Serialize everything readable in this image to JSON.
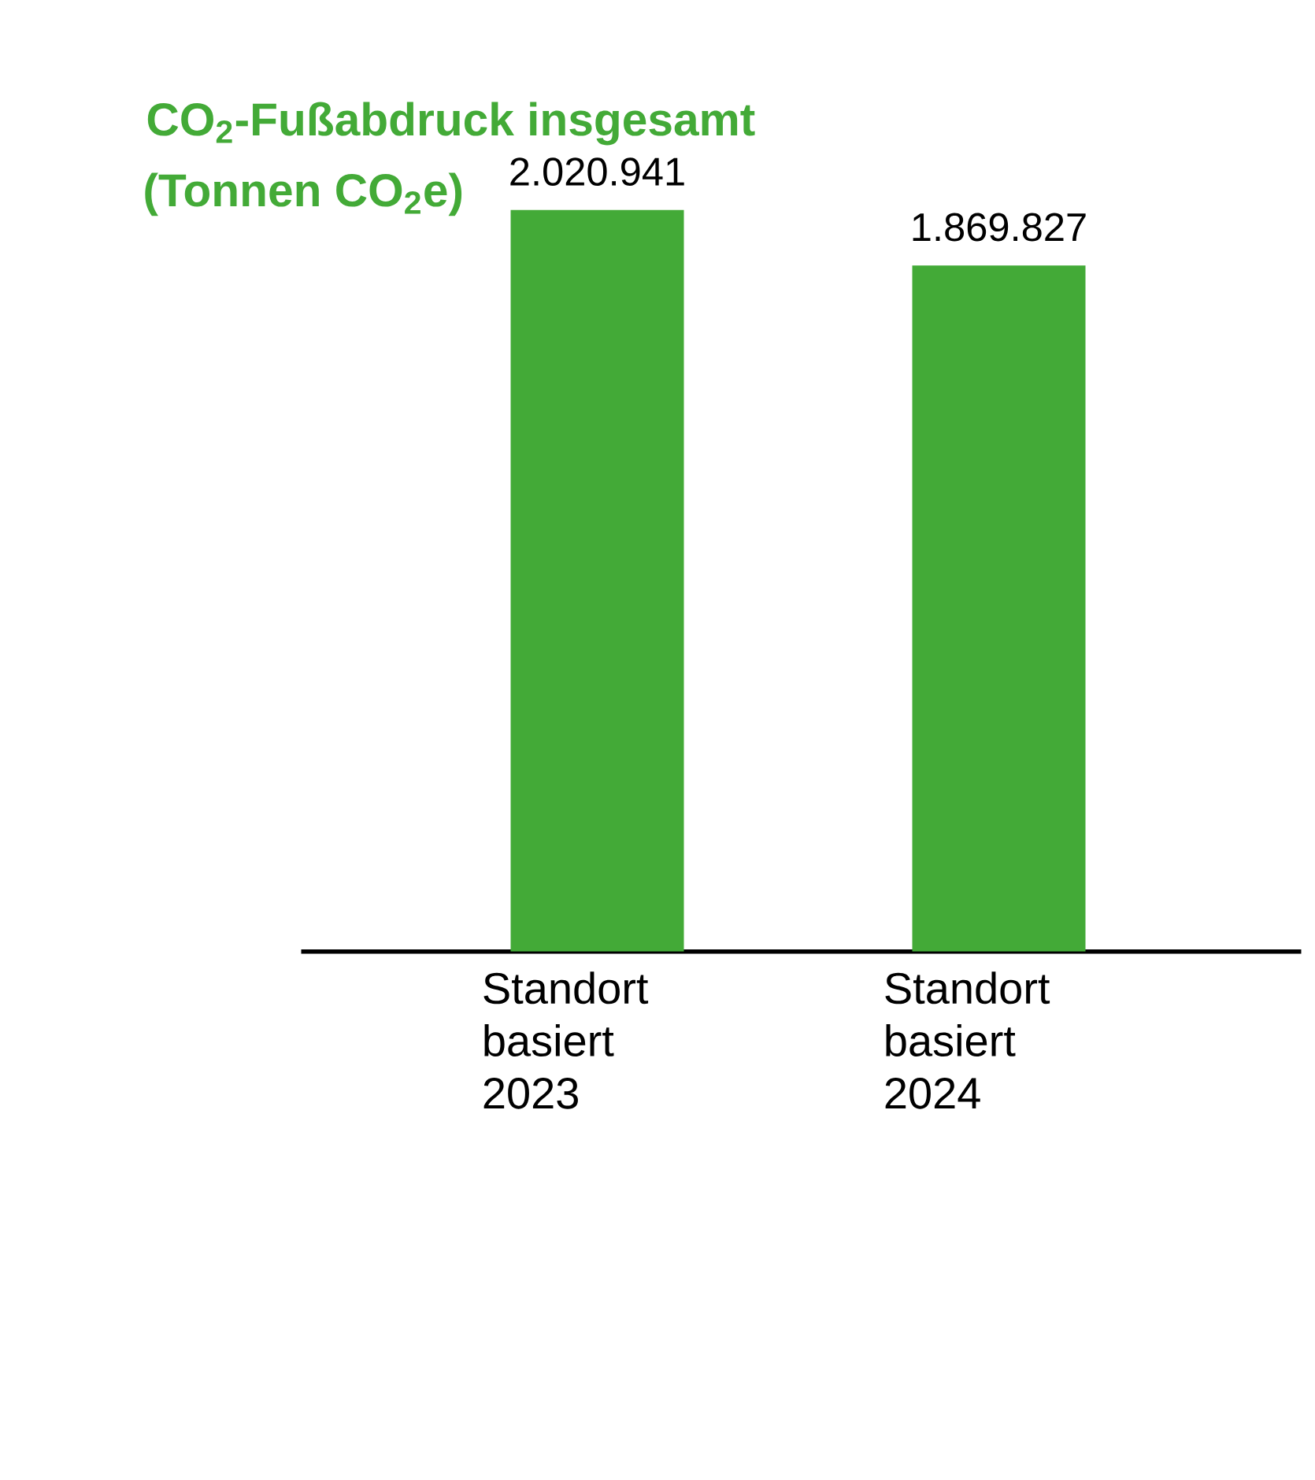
{
  "chart_data": {
    "type": "bar",
    "title": "CO$_{2}$-Fußabdruck insgesamt",
    "subtitle": "(Tonnen CO$_{2}$e)",
    "categories": [
      "Standort basiert 2023",
      "Standort basiert 2024"
    ],
    "values": [
      2020941,
      1869827
    ],
    "value_labels": [
      "2.020.941",
      "1.869.827"
    ],
    "color": "#43aa37"
  }
}
